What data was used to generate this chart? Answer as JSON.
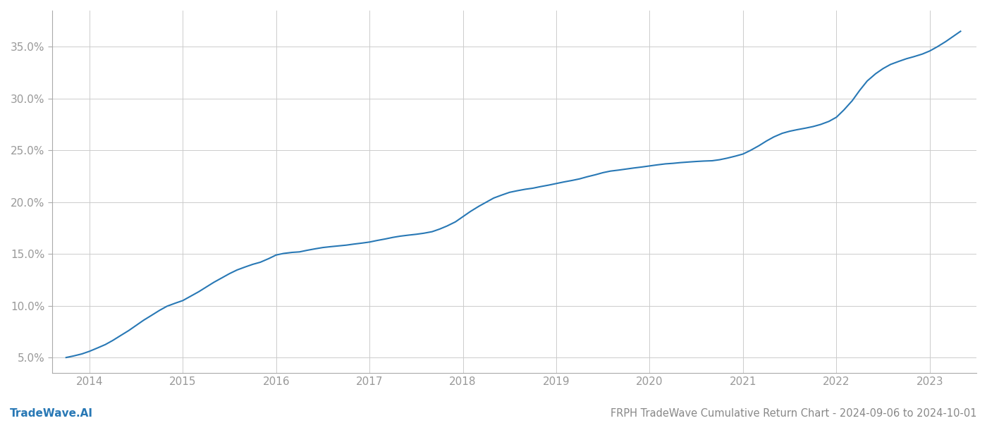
{
  "title": "FRPH TradeWave Cumulative Return Chart - 2024-09-06 to 2024-10-01",
  "watermark": "TradeWave.AI",
  "line_color": "#2878b5",
  "background_color": "#ffffff",
  "grid_color": "#cccccc",
  "x_years": [
    2014,
    2015,
    2016,
    2017,
    2018,
    2019,
    2020,
    2021,
    2022,
    2023
  ],
  "x_data": [
    2013.75,
    2013.83,
    2013.92,
    2014.0,
    2014.08,
    2014.17,
    2014.25,
    2014.33,
    2014.42,
    2014.5,
    2014.58,
    2014.67,
    2014.75,
    2014.83,
    2014.92,
    2015.0,
    2015.08,
    2015.17,
    2015.25,
    2015.33,
    2015.42,
    2015.5,
    2015.58,
    2015.67,
    2015.75,
    2015.83,
    2015.92,
    2016.0,
    2016.08,
    2016.17,
    2016.25,
    2016.33,
    2016.42,
    2016.5,
    2016.58,
    2016.67,
    2016.75,
    2016.83,
    2016.92,
    2017.0,
    2017.08,
    2017.17,
    2017.25,
    2017.33,
    2017.42,
    2017.5,
    2017.58,
    2017.67,
    2017.75,
    2017.83,
    2017.92,
    2018.0,
    2018.08,
    2018.17,
    2018.25,
    2018.33,
    2018.42,
    2018.5,
    2018.58,
    2018.67,
    2018.75,
    2018.83,
    2018.92,
    2019.0,
    2019.08,
    2019.17,
    2019.25,
    2019.33,
    2019.42,
    2019.5,
    2019.58,
    2019.67,
    2019.75,
    2019.83,
    2019.92,
    2020.0,
    2020.08,
    2020.17,
    2020.25,
    2020.33,
    2020.42,
    2020.5,
    2020.58,
    2020.67,
    2020.75,
    2020.83,
    2020.92,
    2021.0,
    2021.08,
    2021.17,
    2021.25,
    2021.33,
    2021.42,
    2021.5,
    2021.58,
    2021.67,
    2021.75,
    2021.83,
    2021.92,
    2022.0,
    2022.08,
    2022.17,
    2022.25,
    2022.33,
    2022.42,
    2022.5,
    2022.58,
    2022.67,
    2022.75,
    2022.83,
    2022.92,
    2023.0,
    2023.08,
    2023.17,
    2023.25,
    2023.33
  ],
  "y_data": [
    5.0,
    5.15,
    5.35,
    5.6,
    5.9,
    6.25,
    6.65,
    7.1,
    7.6,
    8.1,
    8.6,
    9.1,
    9.55,
    9.95,
    10.25,
    10.5,
    10.9,
    11.35,
    11.8,
    12.25,
    12.7,
    13.1,
    13.45,
    13.75,
    14.0,
    14.2,
    14.55,
    14.9,
    15.05,
    15.15,
    15.2,
    15.35,
    15.5,
    15.62,
    15.7,
    15.78,
    15.85,
    15.95,
    16.05,
    16.15,
    16.3,
    16.45,
    16.6,
    16.72,
    16.82,
    16.9,
    17.0,
    17.15,
    17.4,
    17.7,
    18.1,
    18.6,
    19.1,
    19.6,
    20.0,
    20.4,
    20.7,
    20.95,
    21.1,
    21.25,
    21.35,
    21.5,
    21.65,
    21.8,
    21.95,
    22.1,
    22.25,
    22.45,
    22.65,
    22.85,
    23.0,
    23.1,
    23.2,
    23.3,
    23.4,
    23.5,
    23.6,
    23.7,
    23.75,
    23.82,
    23.88,
    23.93,
    23.97,
    24.0,
    24.1,
    24.25,
    24.45,
    24.65,
    25.0,
    25.45,
    25.9,
    26.3,
    26.65,
    26.85,
    27.0,
    27.15,
    27.3,
    27.5,
    27.8,
    28.2,
    28.9,
    29.8,
    30.8,
    31.7,
    32.4,
    32.9,
    33.3,
    33.6,
    33.85,
    34.05,
    34.3,
    34.6,
    35.0,
    35.5,
    36.0,
    36.5
  ],
  "ylim": [
    3.5,
    38.5
  ],
  "yticks": [
    5.0,
    10.0,
    15.0,
    20.0,
    25.0,
    30.0,
    35.0
  ],
  "xlim": [
    2013.6,
    2023.5
  ],
  "title_fontsize": 10.5,
  "watermark_fontsize": 11,
  "tick_fontsize": 11,
  "line_width": 1.5,
  "spine_color": "#aaaaaa",
  "tick_color": "#999999"
}
